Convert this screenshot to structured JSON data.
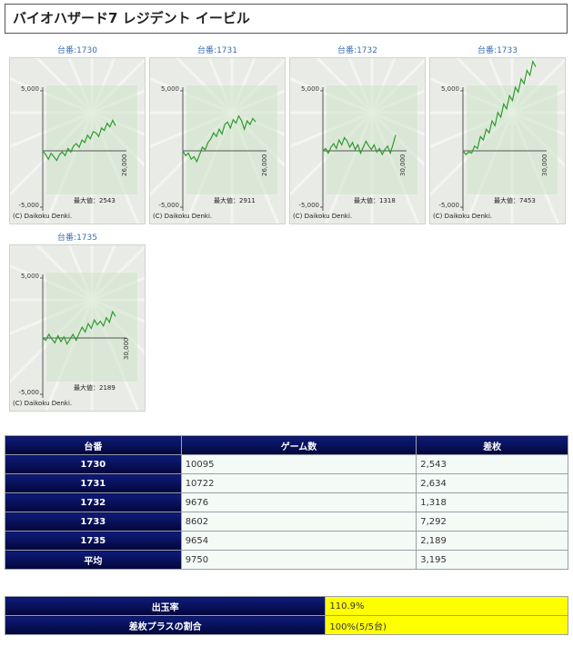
{
  "page_title": "バイオハザード7 レジデント イービル",
  "graph_common": {
    "y_top_label": "5,000",
    "y_bottom_label": "-5,000",
    "max_prefix": "最大値：",
    "copyright": "(C) Daikoku Denki."
  },
  "machines": [
    {
      "label": "台番:1730",
      "max": "2543",
      "x_end_label": "26,000"
    },
    {
      "label": "台番:1731",
      "max": "2911",
      "x_end_label": "26,000"
    },
    {
      "label": "台番:1732",
      "max": "1318",
      "x_end_label": "30,000"
    },
    {
      "label": "台番:1733",
      "max": "7453",
      "x_end_label": "30,000"
    },
    {
      "label": "台番:1735",
      "max": "2189",
      "x_end_label": "30,000"
    }
  ],
  "table": {
    "headers": [
      "台番",
      "ゲーム数",
      "差枚"
    ],
    "rows": [
      {
        "id": "1730",
        "games": "10095",
        "diff": "2,543"
      },
      {
        "id": "1731",
        "games": "10722",
        "diff": "2,634"
      },
      {
        "id": "1732",
        "games": "9676",
        "diff": "1,318"
      },
      {
        "id": "1733",
        "games": "8602",
        "diff": "7,292"
      },
      {
        "id": "1735",
        "games": "9654",
        "diff": "2,189"
      },
      {
        "id": "平均",
        "games": "9750",
        "diff": "3,195"
      }
    ]
  },
  "summary": [
    {
      "label": "出玉率",
      "value": "110.9%"
    },
    {
      "label": "差枚プラスの割合",
      "value": "100%(5/5台)"
    }
  ],
  "colors": {
    "header_bg": "#02063a",
    "value_bg": "#f4fbf7",
    "highlight": "#ffff00",
    "line": "#2e9a2e"
  }
}
